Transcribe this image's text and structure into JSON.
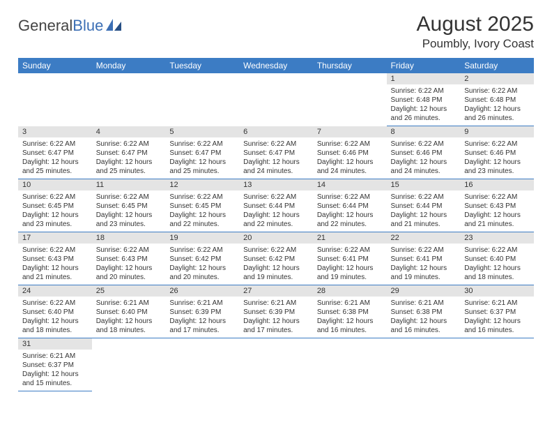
{
  "logo": {
    "general": "General",
    "blue": "Blue"
  },
  "title": "August 2025",
  "location": "Poumbly, Ivory Coast",
  "colors": {
    "header_bg": "#3c7cc4",
    "header_text": "#ffffff",
    "daynum_bg": "#e4e4e4",
    "border": "#3c7cc4",
    "text": "#333333",
    "logo_blue": "#3c6fb5"
  },
  "weekdays": [
    "Sunday",
    "Monday",
    "Tuesday",
    "Wednesday",
    "Thursday",
    "Friday",
    "Saturday"
  ],
  "weeks": [
    [
      null,
      null,
      null,
      null,
      null,
      {
        "n": "1",
        "sr": "6:22 AM",
        "ss": "6:48 PM",
        "dh": "12",
        "dm": "26"
      },
      {
        "n": "2",
        "sr": "6:22 AM",
        "ss": "6:48 PM",
        "dh": "12",
        "dm": "26"
      }
    ],
    [
      {
        "n": "3",
        "sr": "6:22 AM",
        "ss": "6:47 PM",
        "dh": "12",
        "dm": "25"
      },
      {
        "n": "4",
        "sr": "6:22 AM",
        "ss": "6:47 PM",
        "dh": "12",
        "dm": "25"
      },
      {
        "n": "5",
        "sr": "6:22 AM",
        "ss": "6:47 PM",
        "dh": "12",
        "dm": "25"
      },
      {
        "n": "6",
        "sr": "6:22 AM",
        "ss": "6:47 PM",
        "dh": "12",
        "dm": "24"
      },
      {
        "n": "7",
        "sr": "6:22 AM",
        "ss": "6:46 PM",
        "dh": "12",
        "dm": "24"
      },
      {
        "n": "8",
        "sr": "6:22 AM",
        "ss": "6:46 PM",
        "dh": "12",
        "dm": "24"
      },
      {
        "n": "9",
        "sr": "6:22 AM",
        "ss": "6:46 PM",
        "dh": "12",
        "dm": "23"
      }
    ],
    [
      {
        "n": "10",
        "sr": "6:22 AM",
        "ss": "6:45 PM",
        "dh": "12",
        "dm": "23"
      },
      {
        "n": "11",
        "sr": "6:22 AM",
        "ss": "6:45 PM",
        "dh": "12",
        "dm": "23"
      },
      {
        "n": "12",
        "sr": "6:22 AM",
        "ss": "6:45 PM",
        "dh": "12",
        "dm": "22"
      },
      {
        "n": "13",
        "sr": "6:22 AM",
        "ss": "6:44 PM",
        "dh": "12",
        "dm": "22"
      },
      {
        "n": "14",
        "sr": "6:22 AM",
        "ss": "6:44 PM",
        "dh": "12",
        "dm": "22"
      },
      {
        "n": "15",
        "sr": "6:22 AM",
        "ss": "6:44 PM",
        "dh": "12",
        "dm": "21"
      },
      {
        "n": "16",
        "sr": "6:22 AM",
        "ss": "6:43 PM",
        "dh": "12",
        "dm": "21"
      }
    ],
    [
      {
        "n": "17",
        "sr": "6:22 AM",
        "ss": "6:43 PM",
        "dh": "12",
        "dm": "21"
      },
      {
        "n": "18",
        "sr": "6:22 AM",
        "ss": "6:43 PM",
        "dh": "12",
        "dm": "20"
      },
      {
        "n": "19",
        "sr": "6:22 AM",
        "ss": "6:42 PM",
        "dh": "12",
        "dm": "20"
      },
      {
        "n": "20",
        "sr": "6:22 AM",
        "ss": "6:42 PM",
        "dh": "12",
        "dm": "19"
      },
      {
        "n": "21",
        "sr": "6:22 AM",
        "ss": "6:41 PM",
        "dh": "12",
        "dm": "19"
      },
      {
        "n": "22",
        "sr": "6:22 AM",
        "ss": "6:41 PM",
        "dh": "12",
        "dm": "19"
      },
      {
        "n": "23",
        "sr": "6:22 AM",
        "ss": "6:40 PM",
        "dh": "12",
        "dm": "18"
      }
    ],
    [
      {
        "n": "24",
        "sr": "6:22 AM",
        "ss": "6:40 PM",
        "dh": "12",
        "dm": "18"
      },
      {
        "n": "25",
        "sr": "6:21 AM",
        "ss": "6:40 PM",
        "dh": "12",
        "dm": "18"
      },
      {
        "n": "26",
        "sr": "6:21 AM",
        "ss": "6:39 PM",
        "dh": "12",
        "dm": "17"
      },
      {
        "n": "27",
        "sr": "6:21 AM",
        "ss": "6:39 PM",
        "dh": "12",
        "dm": "17"
      },
      {
        "n": "28",
        "sr": "6:21 AM",
        "ss": "6:38 PM",
        "dh": "12",
        "dm": "16"
      },
      {
        "n": "29",
        "sr": "6:21 AM",
        "ss": "6:38 PM",
        "dh": "12",
        "dm": "16"
      },
      {
        "n": "30",
        "sr": "6:21 AM",
        "ss": "6:37 PM",
        "dh": "12",
        "dm": "16"
      }
    ],
    [
      {
        "n": "31",
        "sr": "6:21 AM",
        "ss": "6:37 PM",
        "dh": "12",
        "dm": "15"
      },
      null,
      null,
      null,
      null,
      null,
      null
    ]
  ],
  "labels": {
    "sunrise": "Sunrise:",
    "sunset": "Sunset:",
    "daylight": "Daylight:",
    "hours": "hours",
    "and": "and",
    "minutes": "minutes."
  }
}
